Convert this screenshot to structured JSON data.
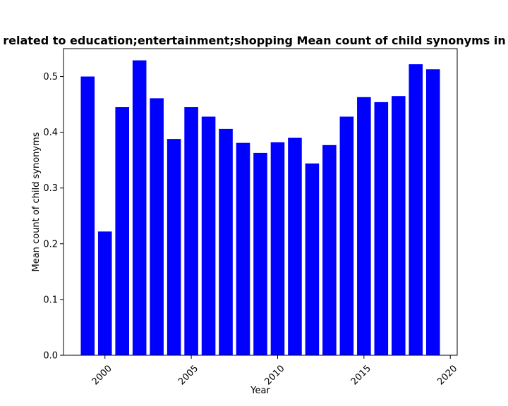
{
  "chart_data": {
    "type": "bar",
    "title": "related to education;entertainment;shopping Mean count of child synonyms in p",
    "xlabel": "Year",
    "ylabel": "Mean count of child synonyms",
    "x": [
      1999,
      2000,
      2001,
      2002,
      2003,
      2004,
      2005,
      2006,
      2007,
      2008,
      2009,
      2010,
      2011,
      2012,
      2013,
      2014,
      2015,
      2016,
      2017,
      2018,
      2019
    ],
    "values": [
      0.5,
      0.222,
      0.445,
      0.529,
      0.461,
      0.388,
      0.445,
      0.428,
      0.406,
      0.381,
      0.363,
      0.382,
      0.39,
      0.344,
      0.377,
      0.428,
      0.463,
      0.454,
      0.465,
      0.522,
      0.513
    ],
    "xlim": [
      1997.6,
      2020.4
    ],
    "ylim": [
      0,
      0.55
    ],
    "x_ticks": [
      "2000",
      "2005",
      "2010",
      "2015",
      "2020"
    ],
    "y_ticks": [
      "0.0",
      "0.1",
      "0.2",
      "0.3",
      "0.4",
      "0.5"
    ],
    "bar_color": "#0000ff",
    "grid": false,
    "legend": "none"
  }
}
